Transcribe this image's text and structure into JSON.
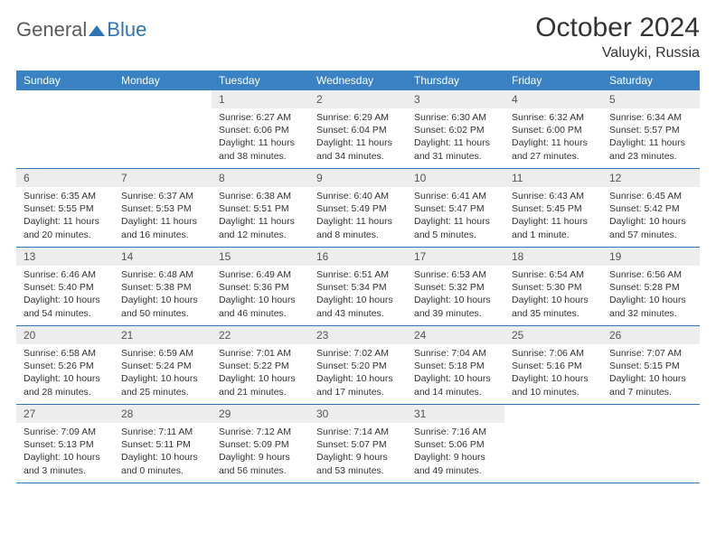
{
  "header": {
    "logo_general": "General",
    "logo_blue": "Blue",
    "month_title": "October 2024",
    "location": "Valuyki, Russia"
  },
  "colors": {
    "header_bar": "#3a82c4",
    "accent": "#2f74b5",
    "daynum_bg": "#ededed",
    "text": "#333333",
    "logo_gray": "#5a5a5a"
  },
  "days_of_week": [
    "Sunday",
    "Monday",
    "Tuesday",
    "Wednesday",
    "Thursday",
    "Friday",
    "Saturday"
  ],
  "weeks": [
    [
      {
        "n": "",
        "sr": "",
        "ss": "",
        "dl": ""
      },
      {
        "n": "",
        "sr": "",
        "ss": "",
        "dl": ""
      },
      {
        "n": "1",
        "sr": "Sunrise: 6:27 AM",
        "ss": "Sunset: 6:06 PM",
        "dl": "Daylight: 11 hours and 38 minutes."
      },
      {
        "n": "2",
        "sr": "Sunrise: 6:29 AM",
        "ss": "Sunset: 6:04 PM",
        "dl": "Daylight: 11 hours and 34 minutes."
      },
      {
        "n": "3",
        "sr": "Sunrise: 6:30 AM",
        "ss": "Sunset: 6:02 PM",
        "dl": "Daylight: 11 hours and 31 minutes."
      },
      {
        "n": "4",
        "sr": "Sunrise: 6:32 AM",
        "ss": "Sunset: 6:00 PM",
        "dl": "Daylight: 11 hours and 27 minutes."
      },
      {
        "n": "5",
        "sr": "Sunrise: 6:34 AM",
        "ss": "Sunset: 5:57 PM",
        "dl": "Daylight: 11 hours and 23 minutes."
      }
    ],
    [
      {
        "n": "6",
        "sr": "Sunrise: 6:35 AM",
        "ss": "Sunset: 5:55 PM",
        "dl": "Daylight: 11 hours and 20 minutes."
      },
      {
        "n": "7",
        "sr": "Sunrise: 6:37 AM",
        "ss": "Sunset: 5:53 PM",
        "dl": "Daylight: 11 hours and 16 minutes."
      },
      {
        "n": "8",
        "sr": "Sunrise: 6:38 AM",
        "ss": "Sunset: 5:51 PM",
        "dl": "Daylight: 11 hours and 12 minutes."
      },
      {
        "n": "9",
        "sr": "Sunrise: 6:40 AM",
        "ss": "Sunset: 5:49 PM",
        "dl": "Daylight: 11 hours and 8 minutes."
      },
      {
        "n": "10",
        "sr": "Sunrise: 6:41 AM",
        "ss": "Sunset: 5:47 PM",
        "dl": "Daylight: 11 hours and 5 minutes."
      },
      {
        "n": "11",
        "sr": "Sunrise: 6:43 AM",
        "ss": "Sunset: 5:45 PM",
        "dl": "Daylight: 11 hours and 1 minute."
      },
      {
        "n": "12",
        "sr": "Sunrise: 6:45 AM",
        "ss": "Sunset: 5:42 PM",
        "dl": "Daylight: 10 hours and 57 minutes."
      }
    ],
    [
      {
        "n": "13",
        "sr": "Sunrise: 6:46 AM",
        "ss": "Sunset: 5:40 PM",
        "dl": "Daylight: 10 hours and 54 minutes."
      },
      {
        "n": "14",
        "sr": "Sunrise: 6:48 AM",
        "ss": "Sunset: 5:38 PM",
        "dl": "Daylight: 10 hours and 50 minutes."
      },
      {
        "n": "15",
        "sr": "Sunrise: 6:49 AM",
        "ss": "Sunset: 5:36 PM",
        "dl": "Daylight: 10 hours and 46 minutes."
      },
      {
        "n": "16",
        "sr": "Sunrise: 6:51 AM",
        "ss": "Sunset: 5:34 PM",
        "dl": "Daylight: 10 hours and 43 minutes."
      },
      {
        "n": "17",
        "sr": "Sunrise: 6:53 AM",
        "ss": "Sunset: 5:32 PM",
        "dl": "Daylight: 10 hours and 39 minutes."
      },
      {
        "n": "18",
        "sr": "Sunrise: 6:54 AM",
        "ss": "Sunset: 5:30 PM",
        "dl": "Daylight: 10 hours and 35 minutes."
      },
      {
        "n": "19",
        "sr": "Sunrise: 6:56 AM",
        "ss": "Sunset: 5:28 PM",
        "dl": "Daylight: 10 hours and 32 minutes."
      }
    ],
    [
      {
        "n": "20",
        "sr": "Sunrise: 6:58 AM",
        "ss": "Sunset: 5:26 PM",
        "dl": "Daylight: 10 hours and 28 minutes."
      },
      {
        "n": "21",
        "sr": "Sunrise: 6:59 AM",
        "ss": "Sunset: 5:24 PM",
        "dl": "Daylight: 10 hours and 25 minutes."
      },
      {
        "n": "22",
        "sr": "Sunrise: 7:01 AM",
        "ss": "Sunset: 5:22 PM",
        "dl": "Daylight: 10 hours and 21 minutes."
      },
      {
        "n": "23",
        "sr": "Sunrise: 7:02 AM",
        "ss": "Sunset: 5:20 PM",
        "dl": "Daylight: 10 hours and 17 minutes."
      },
      {
        "n": "24",
        "sr": "Sunrise: 7:04 AM",
        "ss": "Sunset: 5:18 PM",
        "dl": "Daylight: 10 hours and 14 minutes."
      },
      {
        "n": "25",
        "sr": "Sunrise: 7:06 AM",
        "ss": "Sunset: 5:16 PM",
        "dl": "Daylight: 10 hours and 10 minutes."
      },
      {
        "n": "26",
        "sr": "Sunrise: 7:07 AM",
        "ss": "Sunset: 5:15 PM",
        "dl": "Daylight: 10 hours and 7 minutes."
      }
    ],
    [
      {
        "n": "27",
        "sr": "Sunrise: 7:09 AM",
        "ss": "Sunset: 5:13 PM",
        "dl": "Daylight: 10 hours and 3 minutes."
      },
      {
        "n": "28",
        "sr": "Sunrise: 7:11 AM",
        "ss": "Sunset: 5:11 PM",
        "dl": "Daylight: 10 hours and 0 minutes."
      },
      {
        "n": "29",
        "sr": "Sunrise: 7:12 AM",
        "ss": "Sunset: 5:09 PM",
        "dl": "Daylight: 9 hours and 56 minutes."
      },
      {
        "n": "30",
        "sr": "Sunrise: 7:14 AM",
        "ss": "Sunset: 5:07 PM",
        "dl": "Daylight: 9 hours and 53 minutes."
      },
      {
        "n": "31",
        "sr": "Sunrise: 7:16 AM",
        "ss": "Sunset: 5:06 PM",
        "dl": "Daylight: 9 hours and 49 minutes."
      },
      {
        "n": "",
        "sr": "",
        "ss": "",
        "dl": ""
      },
      {
        "n": "",
        "sr": "",
        "ss": "",
        "dl": ""
      }
    ]
  ]
}
